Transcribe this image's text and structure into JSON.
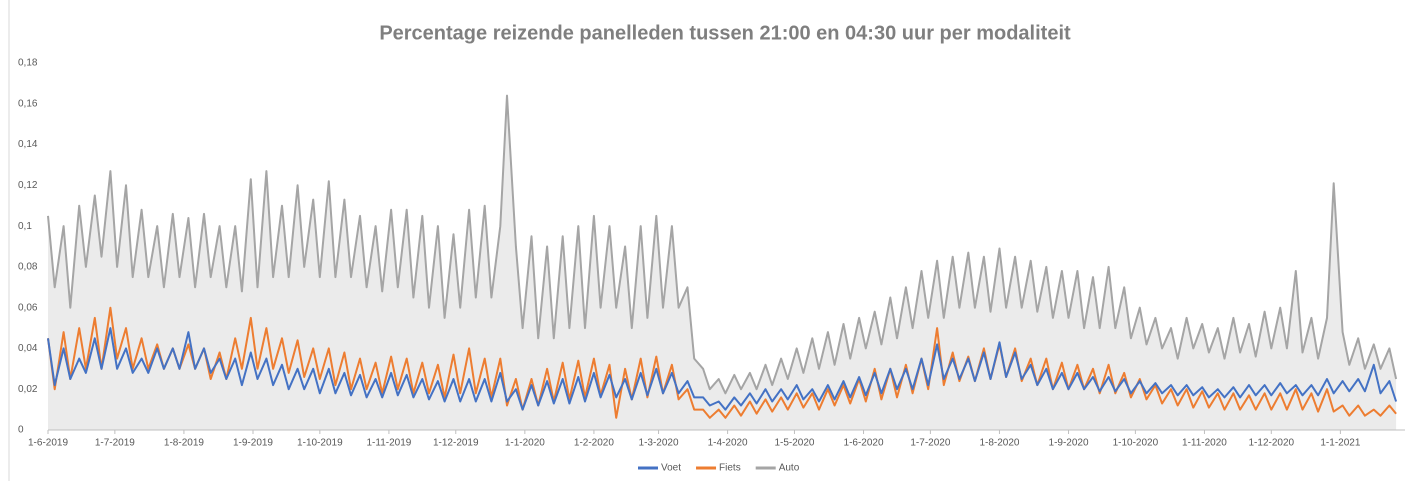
{
  "chart_data": {
    "type": "line",
    "title": "Percentage reizende panelleden tussen 21:00 en 04:30 uur per modaliteit",
    "x": [
      "2019-06-01",
      "2019-06-04",
      "2019-06-08",
      "2019-06-11",
      "2019-06-15",
      "2019-06-18",
      "2019-06-22",
      "2019-06-25",
      "2019-06-29",
      "2019-07-02",
      "2019-07-06",
      "2019-07-09",
      "2019-07-13",
      "2019-07-16",
      "2019-07-20",
      "2019-07-23",
      "2019-07-27",
      "2019-07-30",
      "2019-08-03",
      "2019-08-06",
      "2019-08-10",
      "2019-08-13",
      "2019-08-17",
      "2019-08-20",
      "2019-08-24",
      "2019-08-27",
      "2019-08-31",
      "2019-09-03",
      "2019-09-07",
      "2019-09-10",
      "2019-09-14",
      "2019-09-17",
      "2019-09-21",
      "2019-09-24",
      "2019-09-28",
      "2019-10-01",
      "2019-10-05",
      "2019-10-08",
      "2019-10-12",
      "2019-10-15",
      "2019-10-19",
      "2019-10-22",
      "2019-10-26",
      "2019-10-29",
      "2019-11-02",
      "2019-11-05",
      "2019-11-09",
      "2019-11-12",
      "2019-11-16",
      "2019-11-19",
      "2019-11-23",
      "2019-11-26",
      "2019-11-30",
      "2019-12-03",
      "2019-12-07",
      "2019-12-10",
      "2019-12-14",
      "2019-12-17",
      "2019-12-21",
      "2019-12-24",
      "2019-12-28",
      "2019-12-31",
      "2020-01-04",
      "2020-01-07",
      "2020-01-11",
      "2020-01-14",
      "2020-01-18",
      "2020-01-21",
      "2020-01-25",
      "2020-01-28",
      "2020-02-01",
      "2020-02-04",
      "2020-02-08",
      "2020-02-11",
      "2020-02-15",
      "2020-02-18",
      "2020-02-22",
      "2020-02-25",
      "2020-02-29",
      "2020-03-03",
      "2020-03-07",
      "2020-03-10",
      "2020-03-14",
      "2020-03-17",
      "2020-03-21",
      "2020-03-24",
      "2020-03-28",
      "2020-03-31",
      "2020-04-04",
      "2020-04-07",
      "2020-04-11",
      "2020-04-14",
      "2020-04-18",
      "2020-04-21",
      "2020-04-25",
      "2020-04-28",
      "2020-05-02",
      "2020-05-05",
      "2020-05-09",
      "2020-05-12",
      "2020-05-16",
      "2020-05-19",
      "2020-05-23",
      "2020-05-26",
      "2020-05-30",
      "2020-06-02",
      "2020-06-06",
      "2020-06-09",
      "2020-06-13",
      "2020-06-16",
      "2020-06-20",
      "2020-06-23",
      "2020-06-27",
      "2020-06-30",
      "2020-07-04",
      "2020-07-07",
      "2020-07-11",
      "2020-07-14",
      "2020-07-18",
      "2020-07-21",
      "2020-07-25",
      "2020-07-28",
      "2020-08-01",
      "2020-08-04",
      "2020-08-08",
      "2020-08-11",
      "2020-08-15",
      "2020-08-18",
      "2020-08-22",
      "2020-08-25",
      "2020-08-29",
      "2020-09-01",
      "2020-09-05",
      "2020-09-08",
      "2020-09-12",
      "2020-09-15",
      "2020-09-19",
      "2020-09-22",
      "2020-09-26",
      "2020-09-29",
      "2020-10-03",
      "2020-10-06",
      "2020-10-10",
      "2020-10-13",
      "2020-10-17",
      "2020-10-20",
      "2020-10-24",
      "2020-10-27",
      "2020-10-31",
      "2020-11-03",
      "2020-11-07",
      "2020-11-10",
      "2020-11-14",
      "2020-11-17",
      "2020-11-21",
      "2020-11-24",
      "2020-11-28",
      "2020-12-01",
      "2020-12-05",
      "2020-12-08",
      "2020-12-12",
      "2020-12-15",
      "2020-12-19",
      "2020-12-22",
      "2020-12-26",
      "2020-12-29",
      "2021-01-02",
      "2021-01-05",
      "2021-01-09",
      "2021-01-12",
      "2021-01-16",
      "2021-01-19",
      "2021-01-23",
      "2021-01-26"
    ],
    "series": [
      {
        "name": "Auto",
        "color": "#a5a5a5",
        "values": [
          0.105,
          0.07,
          0.1,
          0.06,
          0.11,
          0.08,
          0.115,
          0.085,
          0.127,
          0.08,
          0.12,
          0.075,
          0.108,
          0.075,
          0.1,
          0.07,
          0.106,
          0.075,
          0.104,
          0.07,
          0.106,
          0.075,
          0.1,
          0.07,
          0.1,
          0.068,
          0.123,
          0.07,
          0.127,
          0.075,
          0.11,
          0.075,
          0.12,
          0.08,
          0.113,
          0.075,
          0.122,
          0.075,
          0.113,
          0.075,
          0.105,
          0.07,
          0.1,
          0.068,
          0.108,
          0.07,
          0.108,
          0.065,
          0.105,
          0.06,
          0.1,
          0.055,
          0.096,
          0.06,
          0.108,
          0.065,
          0.11,
          0.065,
          0.1,
          0.164,
          0.09,
          0.05,
          0.095,
          0.045,
          0.09,
          0.045,
          0.095,
          0.05,
          0.1,
          0.05,
          0.105,
          0.06,
          0.1,
          0.06,
          0.09,
          0.05,
          0.1,
          0.055,
          0.105,
          0.06,
          0.1,
          0.06,
          0.07,
          0.035,
          0.03,
          0.02,
          0.025,
          0.018,
          0.027,
          0.02,
          0.028,
          0.02,
          0.032,
          0.022,
          0.035,
          0.025,
          0.04,
          0.028,
          0.045,
          0.03,
          0.048,
          0.032,
          0.052,
          0.035,
          0.055,
          0.04,
          0.058,
          0.042,
          0.065,
          0.045,
          0.07,
          0.05,
          0.078,
          0.055,
          0.083,
          0.055,
          0.085,
          0.06,
          0.087,
          0.06,
          0.085,
          0.058,
          0.089,
          0.06,
          0.085,
          0.06,
          0.083,
          0.058,
          0.08,
          0.055,
          0.078,
          0.055,
          0.078,
          0.05,
          0.075,
          0.05,
          0.08,
          0.05,
          0.07,
          0.045,
          0.06,
          0.042,
          0.055,
          0.04,
          0.05,
          0.035,
          0.055,
          0.04,
          0.052,
          0.038,
          0.05,
          0.035,
          0.055,
          0.038,
          0.052,
          0.036,
          0.058,
          0.04,
          0.06,
          0.04,
          0.078,
          0.038,
          0.055,
          0.035,
          0.055,
          0.121,
          0.048,
          0.032,
          0.045,
          0.03,
          0.042,
          0.03,
          0.04,
          0.025
        ]
      },
      {
        "name": "Fiets",
        "color": "#ed7d31",
        "values": [
          0.045,
          0.02,
          0.048,
          0.025,
          0.05,
          0.03,
          0.055,
          0.03,
          0.06,
          0.035,
          0.05,
          0.03,
          0.045,
          0.03,
          0.042,
          0.03,
          0.04,
          0.03,
          0.042,
          0.03,
          0.04,
          0.025,
          0.038,
          0.025,
          0.045,
          0.03,
          0.055,
          0.03,
          0.05,
          0.03,
          0.045,
          0.028,
          0.044,
          0.026,
          0.04,
          0.025,
          0.04,
          0.022,
          0.038,
          0.02,
          0.035,
          0.02,
          0.033,
          0.018,
          0.036,
          0.02,
          0.035,
          0.018,
          0.033,
          0.018,
          0.032,
          0.016,
          0.037,
          0.018,
          0.04,
          0.018,
          0.035,
          0.016,
          0.035,
          0.012,
          0.025,
          0.01,
          0.025,
          0.012,
          0.03,
          0.014,
          0.033,
          0.015,
          0.034,
          0.016,
          0.035,
          0.017,
          0.032,
          0.006,
          0.03,
          0.015,
          0.035,
          0.016,
          0.036,
          0.018,
          0.032,
          0.015,
          0.02,
          0.01,
          0.01,
          0.006,
          0.01,
          0.006,
          0.012,
          0.007,
          0.014,
          0.008,
          0.015,
          0.009,
          0.016,
          0.01,
          0.018,
          0.011,
          0.018,
          0.01,
          0.02,
          0.012,
          0.022,
          0.013,
          0.025,
          0.014,
          0.03,
          0.015,
          0.03,
          0.016,
          0.032,
          0.018,
          0.035,
          0.02,
          0.05,
          0.022,
          0.038,
          0.024,
          0.036,
          0.024,
          0.04,
          0.025,
          0.042,
          0.026,
          0.04,
          0.024,
          0.035,
          0.022,
          0.035,
          0.02,
          0.033,
          0.02,
          0.032,
          0.02,
          0.03,
          0.018,
          0.032,
          0.018,
          0.028,
          0.016,
          0.025,
          0.015,
          0.022,
          0.013,
          0.02,
          0.012,
          0.02,
          0.011,
          0.019,
          0.011,
          0.018,
          0.01,
          0.018,
          0.01,
          0.017,
          0.01,
          0.018,
          0.01,
          0.018,
          0.01,
          0.02,
          0.01,
          0.018,
          0.009,
          0.02,
          0.009,
          0.012,
          0.007,
          0.012,
          0.007,
          0.01,
          0.007,
          0.012,
          0.008
        ]
      },
      {
        "name": "Voet",
        "color": "#4472c4",
        "values": [
          0.045,
          0.022,
          0.04,
          0.025,
          0.035,
          0.028,
          0.045,
          0.03,
          0.05,
          0.03,
          0.04,
          0.028,
          0.035,
          0.028,
          0.04,
          0.03,
          0.04,
          0.03,
          0.048,
          0.03,
          0.04,
          0.028,
          0.035,
          0.025,
          0.035,
          0.022,
          0.038,
          0.025,
          0.035,
          0.022,
          0.032,
          0.02,
          0.03,
          0.02,
          0.03,
          0.018,
          0.03,
          0.018,
          0.028,
          0.017,
          0.027,
          0.016,
          0.025,
          0.016,
          0.028,
          0.017,
          0.027,
          0.016,
          0.025,
          0.015,
          0.024,
          0.014,
          0.025,
          0.014,
          0.025,
          0.014,
          0.025,
          0.014,
          0.028,
          0.014,
          0.02,
          0.01,
          0.022,
          0.012,
          0.024,
          0.013,
          0.025,
          0.013,
          0.026,
          0.014,
          0.028,
          0.016,
          0.027,
          0.016,
          0.025,
          0.015,
          0.028,
          0.017,
          0.03,
          0.018,
          0.028,
          0.018,
          0.024,
          0.016,
          0.016,
          0.012,
          0.014,
          0.01,
          0.016,
          0.012,
          0.018,
          0.013,
          0.02,
          0.014,
          0.02,
          0.015,
          0.022,
          0.015,
          0.02,
          0.014,
          0.022,
          0.015,
          0.024,
          0.016,
          0.026,
          0.017,
          0.028,
          0.018,
          0.03,
          0.02,
          0.03,
          0.02,
          0.035,
          0.022,
          0.042,
          0.025,
          0.035,
          0.025,
          0.035,
          0.024,
          0.038,
          0.025,
          0.043,
          0.026,
          0.038,
          0.025,
          0.032,
          0.022,
          0.03,
          0.02,
          0.028,
          0.02,
          0.028,
          0.02,
          0.026,
          0.019,
          0.026,
          0.019,
          0.025,
          0.018,
          0.024,
          0.018,
          0.023,
          0.018,
          0.022,
          0.017,
          0.022,
          0.017,
          0.021,
          0.016,
          0.02,
          0.016,
          0.021,
          0.016,
          0.022,
          0.017,
          0.022,
          0.017,
          0.023,
          0.018,
          0.022,
          0.017,
          0.022,
          0.017,
          0.025,
          0.018,
          0.024,
          0.019,
          0.025,
          0.019,
          0.032,
          0.018,
          0.024,
          0.014
        ]
      }
    ],
    "legend_order": [
      "Voet",
      "Fiets",
      "Auto"
    ],
    "xlim": [
      "2019-06-01",
      "2021-01-30"
    ],
    "xticks": [
      {
        "value": "2019-06-01",
        "label": "1-6-2019"
      },
      {
        "value": "2019-07-01",
        "label": "1-7-2019"
      },
      {
        "value": "2019-08-01",
        "label": "1-8-2019"
      },
      {
        "value": "2019-09-01",
        "label": "1-9-2019"
      },
      {
        "value": "2019-10-01",
        "label": "1-10-2019"
      },
      {
        "value": "2019-11-01",
        "label": "1-11-2019"
      },
      {
        "value": "2019-12-01",
        "label": "1-12-2019"
      },
      {
        "value": "2020-01-01",
        "label": "1-1-2020"
      },
      {
        "value": "2020-02-01",
        "label": "1-2-2020"
      },
      {
        "value": "2020-03-01",
        "label": "1-3-2020"
      },
      {
        "value": "2020-04-01",
        "label": "1-4-2020"
      },
      {
        "value": "2020-05-01",
        "label": "1-5-2020"
      },
      {
        "value": "2020-06-01",
        "label": "1-6-2020"
      },
      {
        "value": "2020-07-01",
        "label": "1-7-2020"
      },
      {
        "value": "2020-08-01",
        "label": "1-8-2020"
      },
      {
        "value": "2020-09-01",
        "label": "1-9-2020"
      },
      {
        "value": "2020-10-01",
        "label": "1-10-2020"
      },
      {
        "value": "2020-11-01",
        "label": "1-11-2020"
      },
      {
        "value": "2020-12-01",
        "label": "1-12-2020"
      },
      {
        "value": "2021-01-01",
        "label": "1-1-2021"
      }
    ],
    "ylim": [
      0,
      0.18
    ],
    "yticks": [
      0,
      {
        "value": 0.02,
        "label": "0,02"
      },
      {
        "value": 0.04,
        "label": "0,04"
      },
      {
        "value": 0.06,
        "label": "0,06"
      },
      {
        "value": 0.08,
        "label": "0,08"
      },
      {
        "value": 0.1,
        "label": "0,1"
      },
      {
        "value": 0.12,
        "label": "0,12"
      },
      {
        "value": 0.14,
        "label": "0,14"
      },
      {
        "value": 0.16,
        "label": "0,16"
      },
      {
        "value": 0.18,
        "label": "0,18"
      }
    ],
    "grid": false,
    "legend": "bottom"
  }
}
